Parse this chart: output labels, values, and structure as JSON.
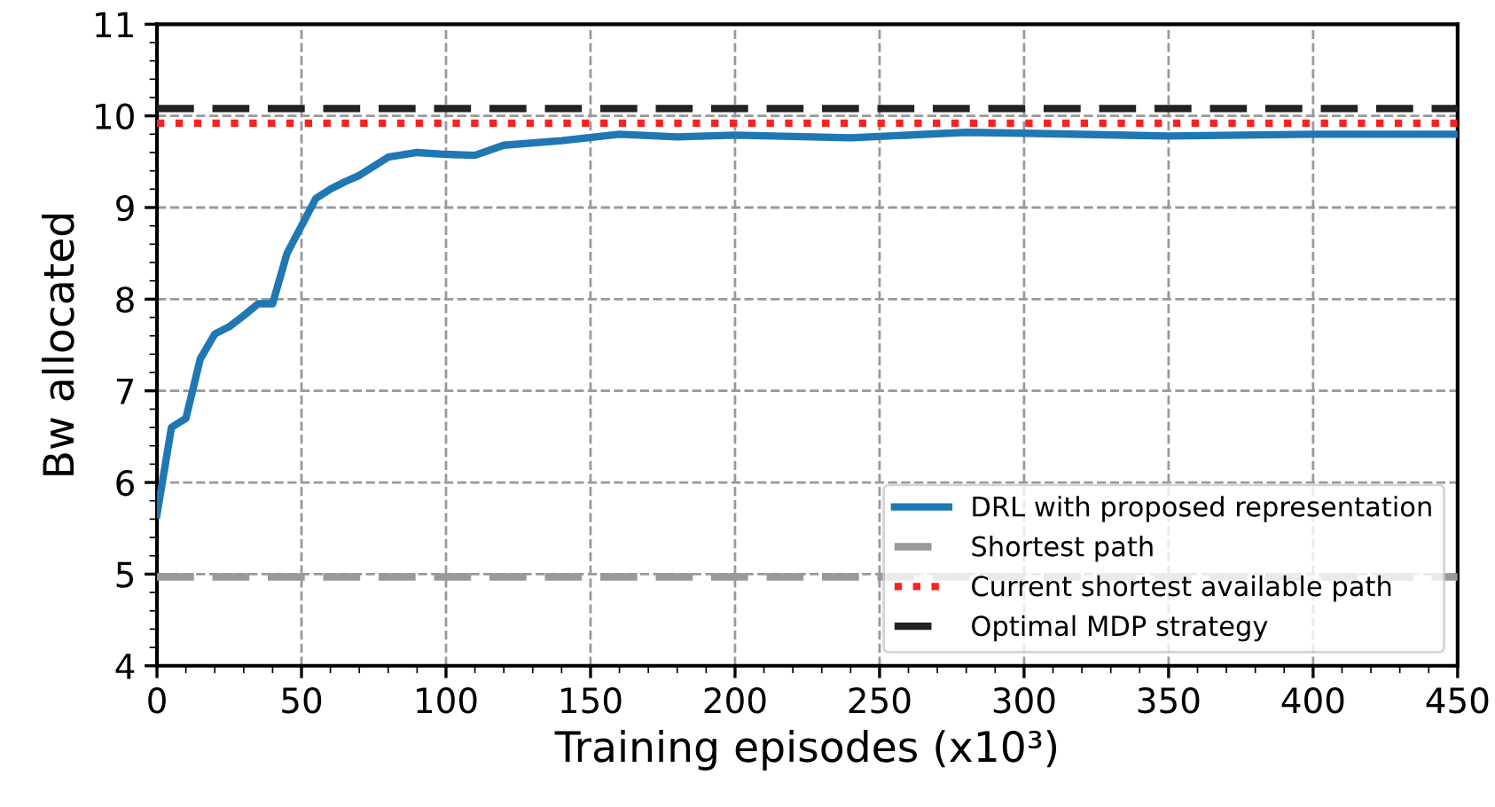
{
  "chart_data": {
    "type": "line",
    "xlabel": "Training episodes (x10³)",
    "ylabel": "Bw allocated",
    "xlim": [
      0,
      450
    ],
    "ylim": [
      4,
      11
    ],
    "xticks": [
      0,
      50,
      100,
      150,
      200,
      250,
      300,
      350,
      400,
      450
    ],
    "yticks": [
      4,
      5,
      6,
      7,
      8,
      9,
      10,
      11
    ],
    "grid": true,
    "legend": "bottom right",
    "series": [
      {
        "name": "DRL with proposed representation",
        "color": "#1f77b4",
        "line_style": "solid",
        "x": [
          0,
          5,
          10,
          15,
          20,
          25,
          30,
          35,
          40,
          45,
          50,
          55,
          60,
          65,
          70,
          80,
          90,
          100,
          110,
          120,
          140,
          160,
          180,
          200,
          240,
          280,
          300,
          350,
          400,
          450
        ],
        "values": [
          5.65,
          6.6,
          6.7,
          7.35,
          7.62,
          7.7,
          7.82,
          7.95,
          7.95,
          8.5,
          8.8,
          9.1,
          9.2,
          9.28,
          9.35,
          9.55,
          9.6,
          9.58,
          9.57,
          9.68,
          9.73,
          9.8,
          9.77,
          9.79,
          9.76,
          9.82,
          9.81,
          9.78,
          9.8,
          9.8
        ]
      },
      {
        "name": "Shortest path",
        "color": "#999999",
        "line_style": "dashed",
        "x": [
          0,
          450
        ],
        "values": [
          4.97,
          4.97
        ]
      },
      {
        "name": "Current shortest available path",
        "color": "#ff2020",
        "line_style": "dotted",
        "x": [
          0,
          450
        ],
        "values": [
          9.92,
          9.92
        ]
      },
      {
        "name": "Optimal MDP strategy",
        "color": "#222222",
        "line_style": "dashed",
        "x": [
          0,
          450
        ],
        "values": [
          10.08,
          10.08
        ]
      }
    ]
  }
}
